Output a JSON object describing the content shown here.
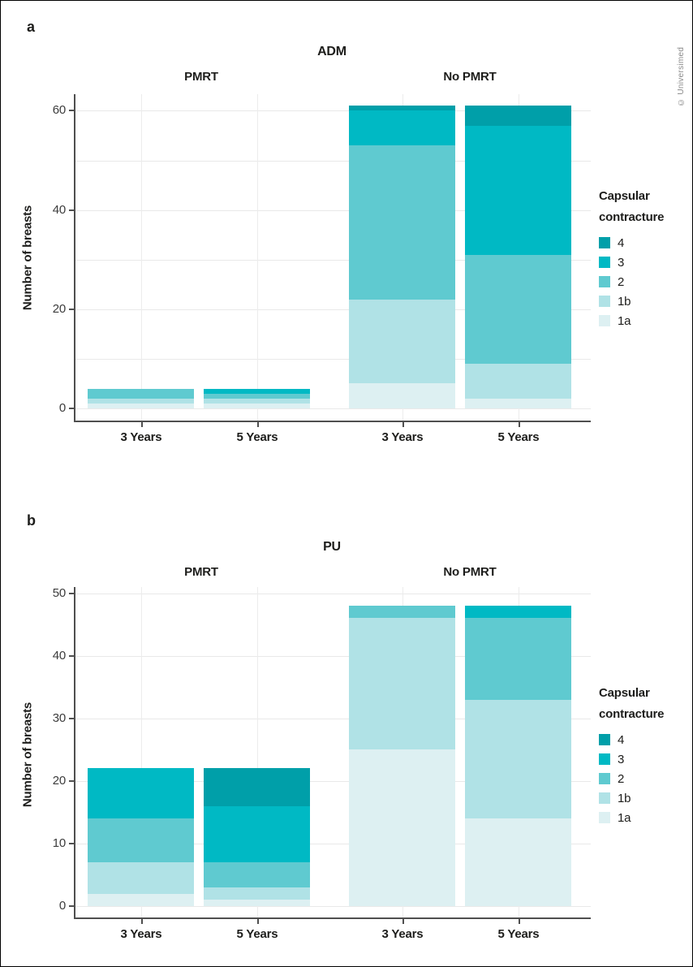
{
  "page": {
    "watermark": "© Universimed"
  },
  "legend": {
    "title_line1": "Capsular",
    "title_line2": "contracture",
    "items": [
      {
        "label": "4",
        "color": "#009fa9"
      },
      {
        "label": "3",
        "color": "#00b9c4"
      },
      {
        "label": "2",
        "color": "#5fcad0"
      },
      {
        "label": "1b",
        "color": "#b0e2e6"
      },
      {
        "label": "1a",
        "color": "#ddf0f2"
      }
    ]
  },
  "chart_data": [
    {
      "type": "bar",
      "stacked": true,
      "panel_label": "a",
      "title": "ADM",
      "facets": [
        "PMRT",
        "No PMRT"
      ],
      "categories": [
        "3 Years",
        "5 Years",
        "3 Years",
        "5 Years"
      ],
      "ylabel": "Number of breasts",
      "ylim": [
        0,
        62
      ],
      "yticks": [
        0,
        20,
        40,
        60
      ],
      "gridline_step": 10,
      "grid": true,
      "legend_position": "right",
      "legend_title": "Capsular contracture",
      "series": [
        {
          "name": "1a",
          "values": [
            1,
            1,
            5,
            2
          ]
        },
        {
          "name": "1b",
          "values": [
            1,
            1,
            17,
            7
          ]
        },
        {
          "name": "2",
          "values": [
            2,
            1,
            31,
            22
          ]
        },
        {
          "name": "3",
          "values": [
            0,
            1,
            7,
            26
          ]
        },
        {
          "name": "4",
          "values": [
            0,
            0,
            1,
            4
          ]
        }
      ],
      "totals": [
        4,
        4,
        61,
        61
      ]
    },
    {
      "type": "bar",
      "stacked": true,
      "panel_label": "b",
      "title": "PU",
      "facets": [
        "PMRT",
        "No PMRT"
      ],
      "categories": [
        "3 Years",
        "5 Years",
        "3 Years",
        "5 Years"
      ],
      "ylabel": "Number of breasts",
      "ylim": [
        0,
        50
      ],
      "yticks": [
        0,
        10,
        20,
        30,
        40,
        50
      ],
      "gridline_step": 10,
      "grid": true,
      "legend_position": "right",
      "legend_title": "Capsular contracture",
      "series": [
        {
          "name": "1a",
          "values": [
            2,
            1,
            25,
            14
          ]
        },
        {
          "name": "1b",
          "values": [
            5,
            2,
            21,
            19
          ]
        },
        {
          "name": "2",
          "values": [
            7,
            4,
            2,
            13
          ]
        },
        {
          "name": "3",
          "values": [
            8,
            9,
            0,
            2
          ]
        },
        {
          "name": "4",
          "values": [
            0,
            6,
            0,
            0
          ]
        }
      ],
      "totals": [
        22,
        22,
        48,
        48
      ]
    }
  ]
}
